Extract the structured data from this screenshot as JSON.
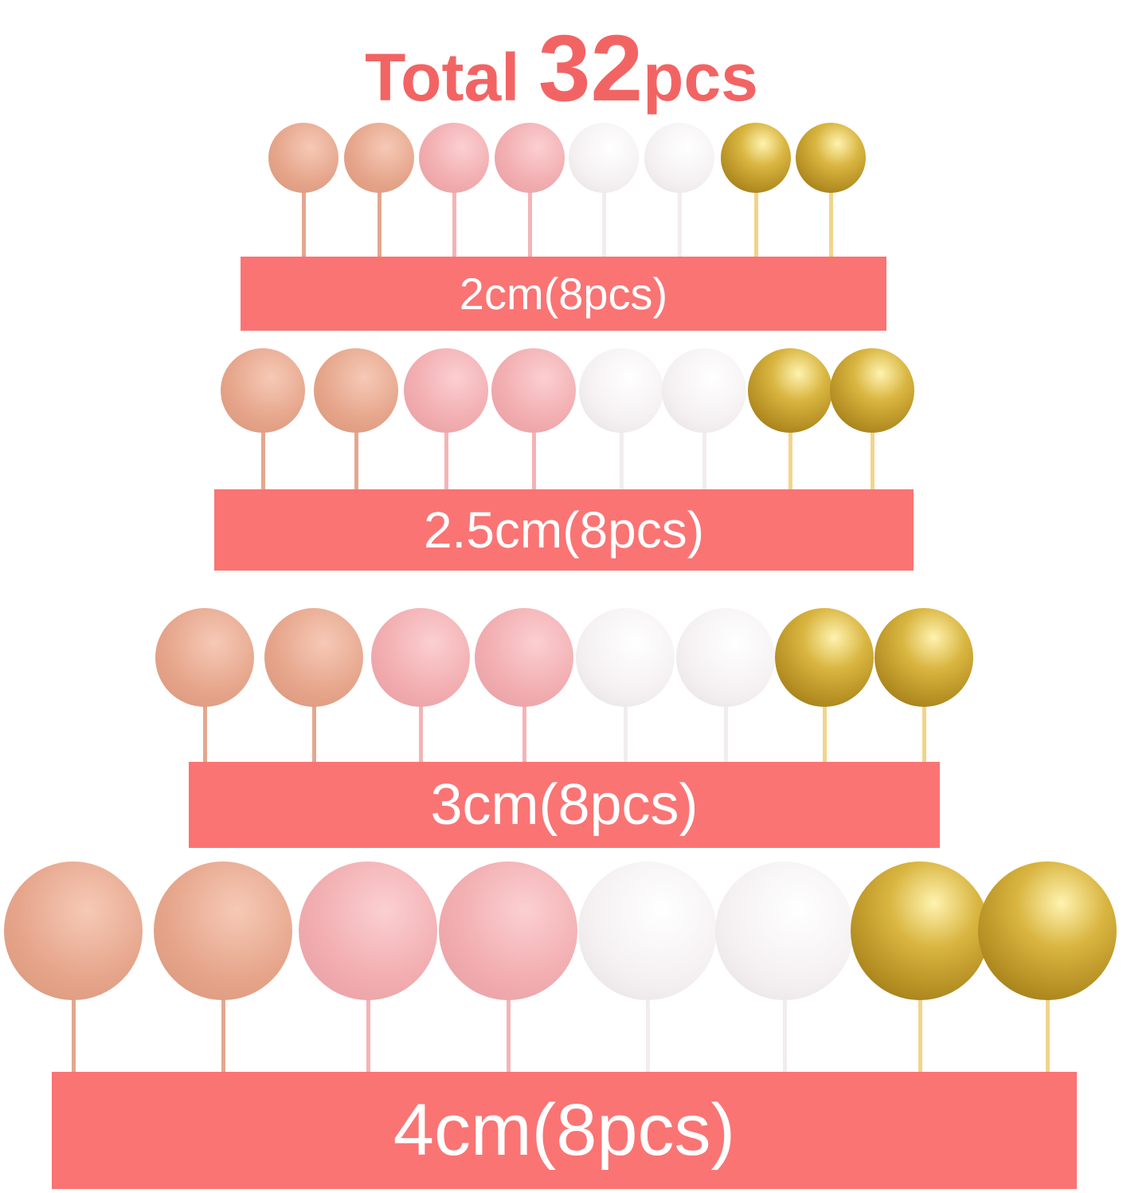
{
  "title": {
    "prefix": "Total ",
    "number": "32",
    "suffix": "pcs"
  },
  "colors": {
    "accent": "#fa7474",
    "title": "#f26464",
    "rose_gold": "#e9aa92",
    "pink": "#f4afb2",
    "white": "#f3f0f1",
    "gold": "#c9a233"
  },
  "ball_colors": [
    "rose_gold",
    "rose_gold",
    "pink",
    "pink",
    "white",
    "white",
    "gold",
    "gold"
  ],
  "rows": [
    {
      "label": "2cm(8pcs)"
    },
    {
      "label": "2.5cm(8pcs)"
    },
    {
      "label": "3cm(8pcs)"
    },
    {
      "label": "4cm(8pcs)"
    }
  ]
}
